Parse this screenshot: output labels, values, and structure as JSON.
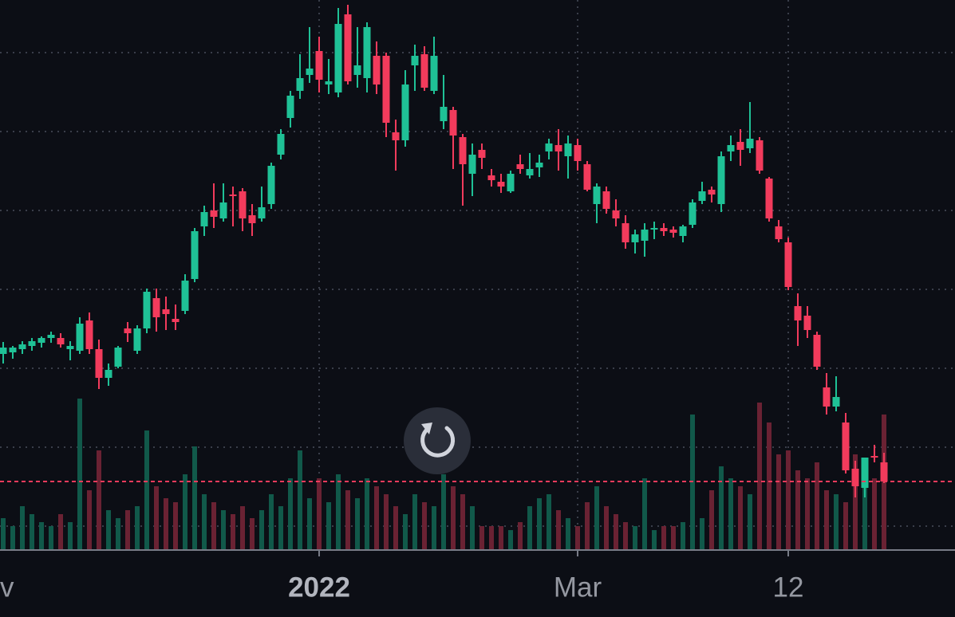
{
  "chart_data": {
    "type": "candlestick",
    "categories": [
      "v",
      null,
      null,
      null,
      null,
      null,
      null,
      null,
      null,
      null,
      null,
      null,
      null,
      null,
      null,
      null,
      null,
      null,
      null,
      null,
      null,
      null,
      null,
      null,
      null,
      null,
      null,
      null,
      null,
      null,
      null,
      null,
      null,
      "2022",
      null,
      null,
      null,
      null,
      null,
      null,
      null,
      null,
      null,
      null,
      null,
      null,
      null,
      null,
      null,
      null,
      null,
      null,
      null,
      null,
      null,
      null,
      null,
      null,
      null,
      null,
      "Mar",
      null,
      null,
      null,
      null,
      null,
      null,
      null,
      null,
      null,
      null,
      null,
      null,
      null,
      null,
      null,
      null,
      null,
      null,
      null,
      null,
      null,
      "12",
      null,
      null,
      null,
      null,
      null,
      null,
      null,
      null,
      null,
      null
    ],
    "candles": [
      [
        330,
        345,
        318,
        338
      ],
      [
        332,
        340,
        324,
        338
      ],
      [
        336,
        346,
        330,
        342
      ],
      [
        340,
        350,
        334,
        346
      ],
      [
        344,
        352,
        338,
        350
      ],
      [
        350,
        358,
        344,
        354
      ],
      [
        350,
        356,
        338,
        342
      ],
      [
        336,
        346,
        322,
        340
      ],
      [
        334,
        376,
        330,
        368
      ],
      [
        372,
        382,
        330,
        336
      ],
      [
        336,
        348,
        286,
        300
      ],
      [
        300,
        318,
        290,
        310
      ],
      [
        314,
        340,
        312,
        338
      ],
      [
        362,
        370,
        345,
        356
      ],
      [
        334,
        366,
        330,
        362
      ],
      [
        362,
        412,
        356,
        408
      ],
      [
        400,
        412,
        358,
        376
      ],
      [
        386,
        402,
        360,
        380
      ],
      [
        374,
        392,
        360,
        370
      ],
      [
        384,
        430,
        380,
        422
      ],
      [
        424,
        488,
        420,
        484
      ],
      [
        490,
        516,
        478,
        508
      ],
      [
        510,
        544,
        488,
        502
      ],
      [
        500,
        544,
        496,
        520
      ],
      [
        530,
        540,
        490,
        528
      ],
      [
        534,
        538,
        484,
        500
      ],
      [
        504,
        518,
        478,
        494
      ],
      [
        500,
        540,
        496,
        514
      ],
      [
        518,
        570,
        512,
        566
      ],
      [
        580,
        612,
        574,
        606
      ],
      [
        626,
        660,
        614,
        654
      ],
      [
        660,
        706,
        650,
        676
      ],
      [
        680,
        740,
        670,
        688
      ],
      [
        710,
        728,
        658,
        674
      ],
      [
        668,
        700,
        656,
        672
      ],
      [
        658,
        764,
        652,
        744
      ],
      [
        756,
        768,
        668,
        672
      ],
      [
        680,
        740,
        664,
        692
      ],
      [
        676,
        746,
        658,
        740
      ],
      [
        704,
        722,
        656,
        668
      ],
      [
        704,
        708,
        602,
        620
      ],
      [
        608,
        624,
        560,
        598
      ],
      [
        598,
        686,
        590,
        668
      ],
      [
        692,
        718,
        660,
        704
      ],
      [
        706,
        716,
        660,
        664
      ],
      [
        660,
        728,
        656,
        704
      ],
      [
        622,
        680,
        612,
        640
      ],
      [
        636,
        640,
        562,
        604
      ],
      [
        602,
        606,
        516,
        568
      ],
      [
        556,
        594,
        528,
        580
      ],
      [
        586,
        594,
        562,
        576
      ],
      [
        554,
        562,
        540,
        548
      ],
      [
        546,
        556,
        532,
        540
      ],
      [
        534,
        560,
        532,
        556
      ],
      [
        568,
        580,
        556,
        562
      ],
      [
        554,
        582,
        550,
        562
      ],
      [
        564,
        580,
        552,
        570
      ],
      [
        584,
        600,
        574,
        594
      ],
      [
        592,
        612,
        560,
        584
      ],
      [
        578,
        604,
        550,
        594
      ],
      [
        592,
        600,
        560,
        572
      ],
      [
        568,
        572,
        534,
        536
      ],
      [
        518,
        544,
        494,
        540
      ],
      [
        534,
        540,
        506,
        512
      ],
      [
        510,
        524,
        490,
        500
      ],
      [
        494,
        504,
        462,
        470
      ],
      [
        470,
        486,
        456,
        480
      ],
      [
        472,
        494,
        452,
        486
      ],
      [
        486,
        496,
        474,
        488
      ],
      [
        488,
        494,
        478,
        484
      ],
      [
        486,
        490,
        476,
        482
      ],
      [
        478,
        492,
        470,
        490
      ],
      [
        492,
        524,
        488,
        520
      ],
      [
        522,
        546,
        518,
        534
      ],
      [
        536,
        540,
        520,
        530
      ],
      [
        518,
        584,
        508,
        578
      ],
      [
        584,
        604,
        572,
        592
      ],
      [
        596,
        612,
        566,
        586
      ],
      [
        588,
        646,
        582,
        600
      ],
      [
        598,
        602,
        556,
        560
      ],
      [
        550,
        552,
        496,
        500
      ],
      [
        490,
        498,
        470,
        474
      ],
      [
        470,
        476,
        410,
        414
      ],
      [
        390,
        406,
        340,
        372
      ],
      [
        378,
        390,
        350,
        360
      ],
      [
        354,
        358,
        310,
        314
      ],
      [
        288,
        306,
        254,
        264
      ],
      [
        264,
        302,
        258,
        276
      ],
      [
        244,
        256,
        180,
        184
      ],
      [
        186,
        196,
        150,
        164
      ],
      [
        162,
        200,
        150,
        200
      ],
      [
        202,
        216,
        194,
        200
      ],
      [
        194,
        206,
        168,
        170
      ]
    ],
    "volume": [
      40,
      30,
      55,
      45,
      35,
      30,
      45,
      35,
      190,
      75,
      125,
      50,
      40,
      50,
      55,
      150,
      80,
      65,
      60,
      95,
      130,
      70,
      60,
      50,
      45,
      55,
      40,
      50,
      70,
      55,
      90,
      125,
      65,
      90,
      60,
      95,
      75,
      65,
      90,
      80,
      70,
      55,
      45,
      70,
      60,
      55,
      95,
      80,
      70,
      55,
      30,
      30,
      30,
      25,
      35,
      55,
      65,
      70,
      50,
      40,
      30,
      60,
      80,
      55,
      45,
      35,
      30,
      90,
      25,
      30,
      30,
      35,
      170,
      40,
      75,
      105,
      90,
      80,
      70,
      185,
      160,
      120,
      125,
      100,
      90,
      110,
      75,
      70,
      60,
      120,
      80,
      90,
      170
    ],
    "ylim": [
      84,
      774
    ],
    "yticks": [
      114,
      213,
      312,
      411,
      510,
      609,
      708
    ],
    "vlim": [
      0,
      690
    ],
    "grid": true,
    "up_color": "#1fc196",
    "down_color": "#f23b5c",
    "volume_up_color": "#11594a",
    "volume_down_color": "#6a2233"
  }
}
